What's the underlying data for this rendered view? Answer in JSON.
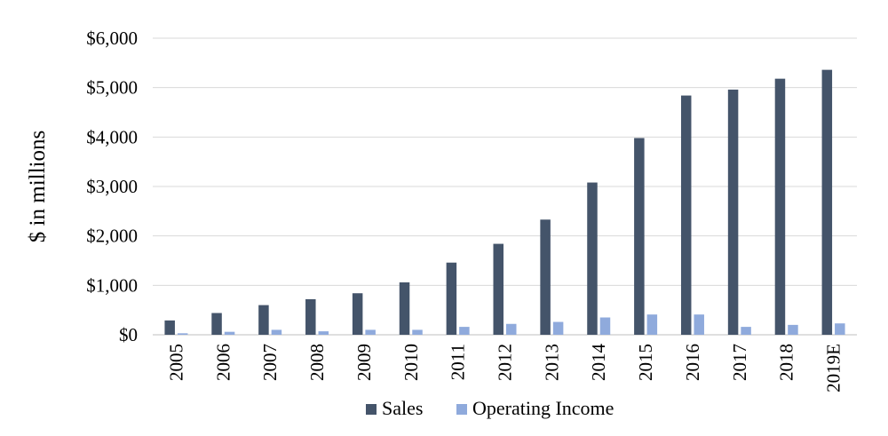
{
  "chart_data": {
    "type": "bar",
    "title": "",
    "xlabel": "",
    "ylabel": "$ in millions",
    "ylim": [
      0,
      6000
    ],
    "yticks": [
      0,
      1000,
      2000,
      3000,
      4000,
      5000,
      6000
    ],
    "ytick_labels": [
      "$0",
      "$1,000",
      "$2,000",
      "$3,000",
      "$4,000",
      "$5,000",
      "$6,000"
    ],
    "grid": true,
    "legend_position": "bottom",
    "categories": [
      "2005",
      "2006",
      "2007",
      "2008",
      "2009",
      "2010",
      "2011",
      "2012",
      "2013",
      "2014",
      "2015",
      "2016",
      "2017",
      "2018",
      "2019E"
    ],
    "series": [
      {
        "name": "Sales",
        "color": "#44546a",
        "values": [
          290,
          440,
          600,
          720,
          840,
          1060,
          1460,
          1840,
          2330,
          3080,
          3980,
          4840,
          4960,
          5180,
          5360
        ]
      },
      {
        "name": "Operating Income",
        "color": "#8faadc",
        "values": [
          30,
          60,
          100,
          70,
          100,
          100,
          160,
          220,
          260,
          350,
          410,
          410,
          160,
          200,
          230
        ]
      }
    ]
  }
}
